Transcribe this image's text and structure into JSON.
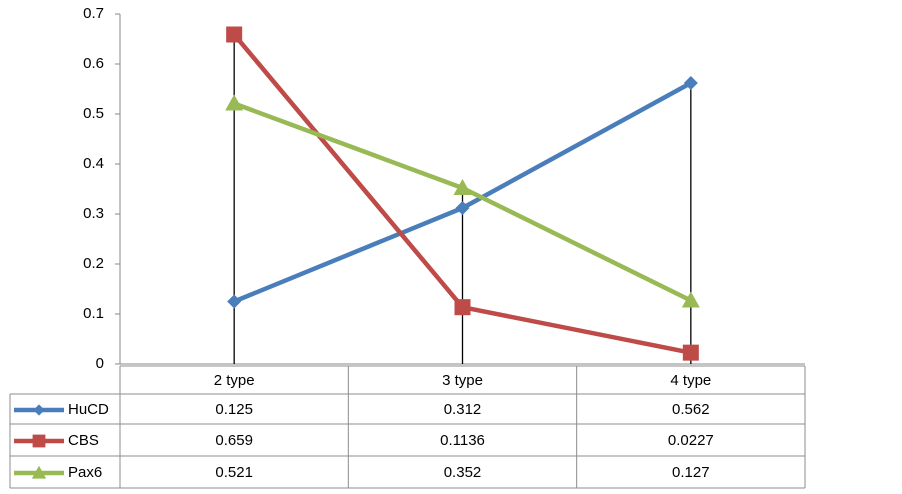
{
  "chart_data": {
    "type": "line",
    "categories": [
      "2 type",
      "3 type",
      "4 type"
    ],
    "series": [
      {
        "name": "HuCD",
        "color": "#4a7ebb",
        "marker": "diamond",
        "values": [
          0.125,
          0.312,
          0.562
        ]
      },
      {
        "name": "CBS",
        "color": "#be4b48",
        "marker": "square",
        "values": [
          0.659,
          0.1136,
          0.0227
        ]
      },
      {
        "name": "Pax6",
        "color": "#98b954",
        "marker": "triangle",
        "values": [
          0.521,
          0.352,
          0.127
        ]
      }
    ],
    "ylim": [
      0,
      0.7
    ],
    "yticks": [
      0,
      0.1,
      0.2,
      0.3,
      0.4,
      0.5,
      0.6,
      0.7
    ],
    "drop_lines": true,
    "data_table": true
  }
}
